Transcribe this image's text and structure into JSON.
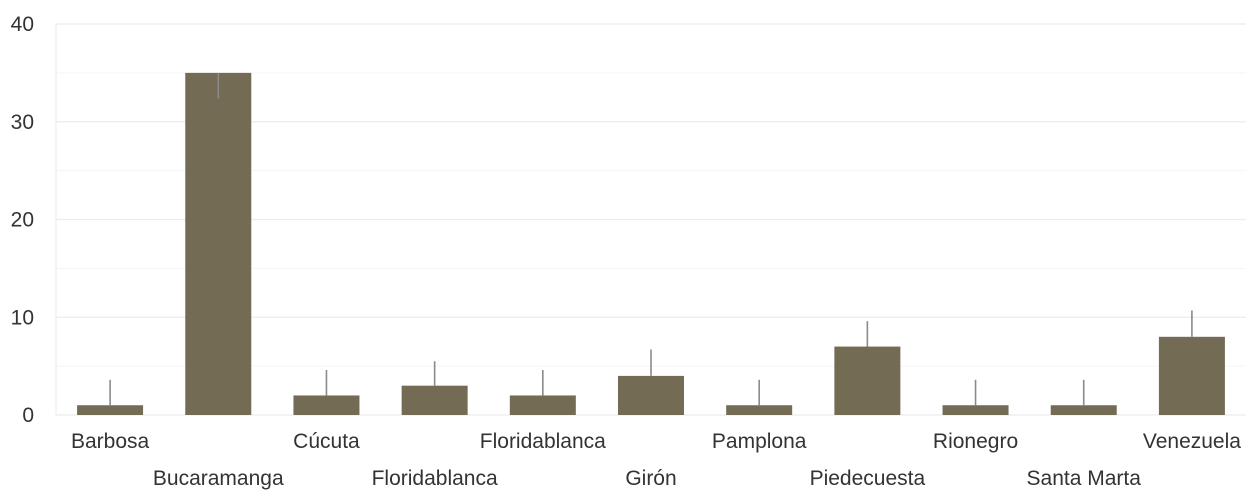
{
  "chart_data": {
    "type": "bar",
    "title": "",
    "xlabel": "",
    "ylabel": "",
    "ylim": [
      0,
      40
    ],
    "yticks": [
      "0",
      "10",
      "20",
      "30",
      "40"
    ],
    "grid": true,
    "legend": "none",
    "bar_color": "#736b54",
    "error_color": "#8a8a8a",
    "categories": [
      "Barbosa",
      "Bucaramanga",
      "Cúcuta",
      "Floridablanca",
      "Floridablanca",
      "Girón",
      "Pamplona",
      "Piedecuesta",
      "Rionegro",
      "Santa Marta",
      "Venezuela"
    ],
    "values": [
      1,
      35,
      2,
      3,
      2,
      4,
      1,
      7,
      1,
      1,
      8
    ],
    "error_upper": [
      3.6,
      35,
      4.6,
      5.5,
      4.6,
      6.7,
      3.6,
      9.6,
      3.6,
      3.6,
      10.7
    ],
    "error_lower": [
      1,
      32.4,
      2,
      3,
      2,
      4,
      1,
      7,
      1,
      1,
      8
    ]
  }
}
